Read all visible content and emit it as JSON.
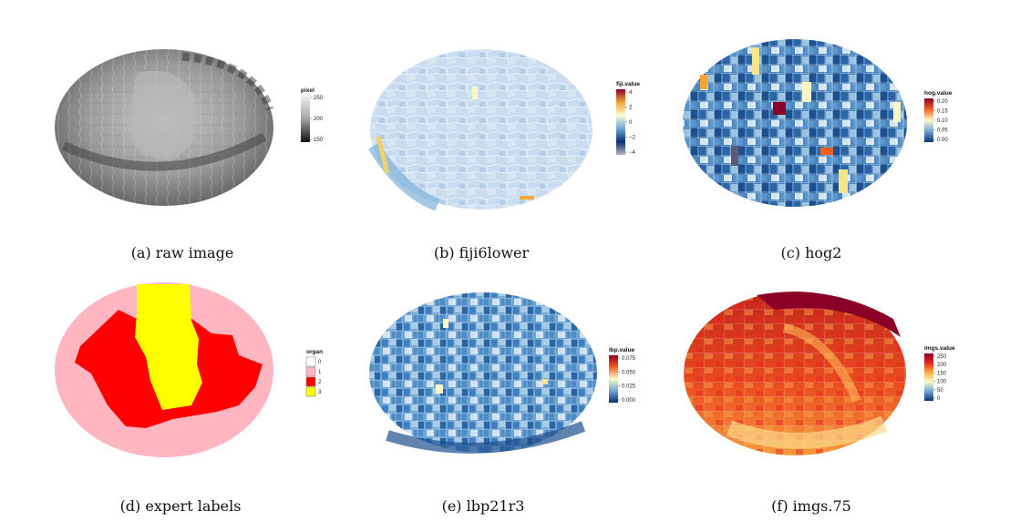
{
  "panels": [
    {
      "id": "a",
      "caption": "(a) raw image",
      "legend": {
        "title": "pixel",
        "ticks": [
          "250",
          "200",
          "150"
        ],
        "colors": [
          "#f2f2f2",
          "#a6a6a6",
          "#111111"
        ]
      }
    },
    {
      "id": "b",
      "caption": "(b) fiji6lower",
      "legend": {
        "title": "fiji.value",
        "ticks": [
          "4",
          "2",
          "0",
          "−2",
          "−4"
        ],
        "colors": [
          "#8b0026",
          "#f4a636",
          "#fbfad8",
          "#6fa6d3",
          "#08326e",
          "#b5b2c8"
        ]
      }
    },
    {
      "id": "c",
      "caption": "(c) hog2",
      "legend": {
        "title": "hog.value",
        "ticks": [
          "0.20",
          "0.15",
          "0.10",
          "0.05",
          "0.00"
        ],
        "colors": [
          "#8b0026",
          "#f5601f",
          "#fbf9c9",
          "#6fa6d3",
          "#08326e"
        ]
      }
    },
    {
      "id": "d",
      "caption": "(d) expert labels",
      "legend": {
        "title": "organ",
        "items": [
          {
            "label": "0",
            "color": "#ffffff"
          },
          {
            "label": "1",
            "color": "#ffb6c1"
          },
          {
            "label": "2",
            "color": "#ff0000"
          },
          {
            "label": "3",
            "color": "#ffff00"
          }
        ]
      }
    },
    {
      "id": "e",
      "caption": "(e) lbp21r3",
      "legend": {
        "title": "lbp.value",
        "ticks": [
          "0.075",
          "0.050",
          "0.025",
          "0.000"
        ],
        "colors": [
          "#8b0026",
          "#f5601f",
          "#fbf9c9",
          "#6fa6d3",
          "#08326e"
        ]
      }
    },
    {
      "id": "f",
      "caption": "(f) imgs.75",
      "legend": {
        "title": "imgs.value",
        "ticks": [
          "250",
          "200",
          "150",
          "100",
          "50",
          "0"
        ],
        "colors": [
          "#8b0026",
          "#e8281f",
          "#fdae45",
          "#fbf9c9",
          "#6fa6d3",
          "#08326e"
        ]
      }
    }
  ]
}
